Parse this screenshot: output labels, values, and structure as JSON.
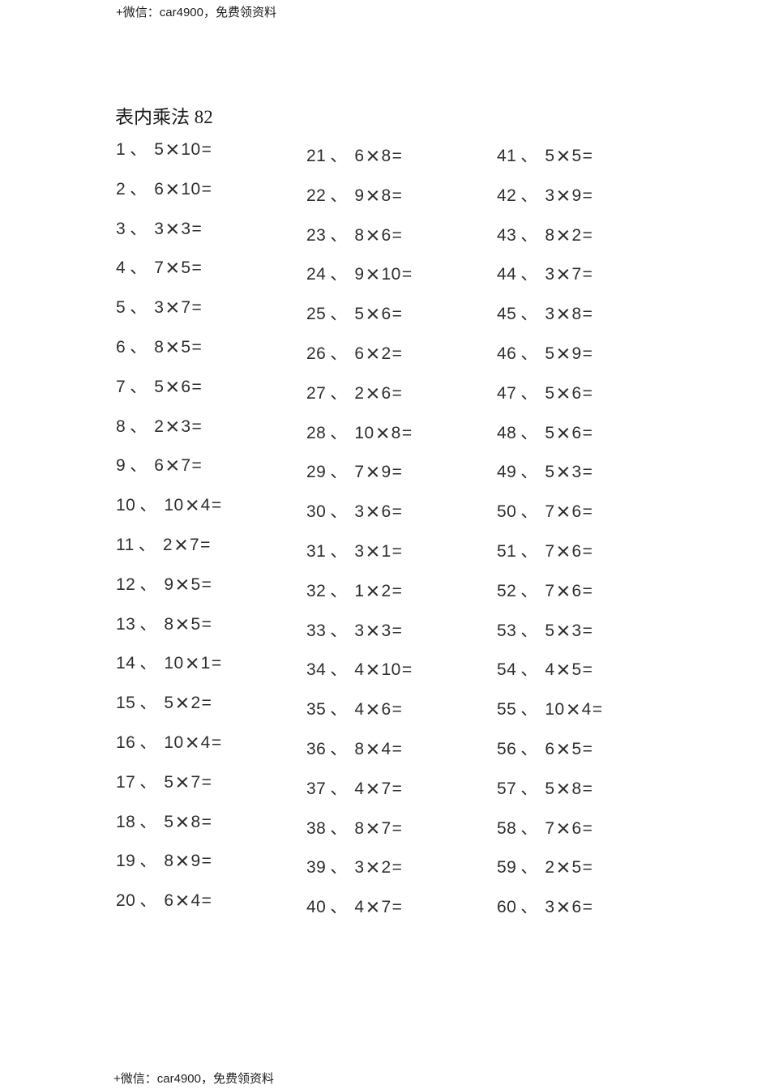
{
  "page": {
    "header_note": "+微信：car4900，免费领资料",
    "footer_note": "+微信：car4900，免费领资料",
    "title": "表内乘法 82"
  },
  "worksheet": {
    "enum_comma": "、",
    "multiply_symbol": "×",
    "equals_symbol": "=",
    "columns_of": 20,
    "problems": [
      {
        "no": "1",
        "a": "5",
        "b": "10"
      },
      {
        "no": "2",
        "a": "6",
        "b": "10"
      },
      {
        "no": "3",
        "a": "3",
        "b": "3"
      },
      {
        "no": "4",
        "a": "7",
        "b": "5"
      },
      {
        "no": "5",
        "a": "3",
        "b": "7"
      },
      {
        "no": "6",
        "a": "8",
        "b": "5"
      },
      {
        "no": "7",
        "a": "5",
        "b": "6"
      },
      {
        "no": "8",
        "a": "2",
        "b": "3"
      },
      {
        "no": "9",
        "a": "6",
        "b": "7"
      },
      {
        "no": "10",
        "a": "10",
        "b": "4"
      },
      {
        "no": "11",
        "a": "2",
        "b": "7"
      },
      {
        "no": "12",
        "a": "9",
        "b": "5"
      },
      {
        "no": "13",
        "a": "8",
        "b": "5"
      },
      {
        "no": "14",
        "a": "10",
        "b": "1"
      },
      {
        "no": "15",
        "a": "5",
        "b": "2"
      },
      {
        "no": "16",
        "a": "10",
        "b": "4"
      },
      {
        "no": "17",
        "a": "5",
        "b": "7"
      },
      {
        "no": "18",
        "a": "5",
        "b": "8"
      },
      {
        "no": "19",
        "a": "8",
        "b": "9"
      },
      {
        "no": "20",
        "a": "6",
        "b": "4"
      },
      {
        "no": "21",
        "a": "6",
        "b": "8"
      },
      {
        "no": "22",
        "a": "9",
        "b": "8"
      },
      {
        "no": "23",
        "a": "8",
        "b": "6"
      },
      {
        "no": "24",
        "a": "9",
        "b": "10"
      },
      {
        "no": "25",
        "a": "5",
        "b": "6"
      },
      {
        "no": "26",
        "a": "6",
        "b": "2"
      },
      {
        "no": "27",
        "a": "2",
        "b": "6"
      },
      {
        "no": "28",
        "a": "10",
        "b": "8"
      },
      {
        "no": "29",
        "a": "7",
        "b": "9"
      },
      {
        "no": "30",
        "a": "3",
        "b": "6"
      },
      {
        "no": "31",
        "a": "3",
        "b": "1"
      },
      {
        "no": "32",
        "a": "1",
        "b": "2"
      },
      {
        "no": "33",
        "a": "3",
        "b": "3"
      },
      {
        "no": "34",
        "a": "4",
        "b": "10"
      },
      {
        "no": "35",
        "a": "4",
        "b": "6"
      },
      {
        "no": "36",
        "a": "8",
        "b": "4"
      },
      {
        "no": "37",
        "a": "4",
        "b": "7"
      },
      {
        "no": "38",
        "a": "8",
        "b": "7"
      },
      {
        "no": "39",
        "a": "3",
        "b": "2"
      },
      {
        "no": "40",
        "a": "4",
        "b": "7"
      },
      {
        "no": "41",
        "a": "5",
        "b": "5"
      },
      {
        "no": "42",
        "a": "3",
        "b": "9"
      },
      {
        "no": "43",
        "a": "8",
        "b": "2"
      },
      {
        "no": "44",
        "a": "3",
        "b": "7"
      },
      {
        "no": "45",
        "a": "3",
        "b": "8"
      },
      {
        "no": "46",
        "a": "5",
        "b": "9"
      },
      {
        "no": "47",
        "a": "5",
        "b": "6"
      },
      {
        "no": "48",
        "a": "5",
        "b": "6"
      },
      {
        "no": "49",
        "a": "5",
        "b": "3"
      },
      {
        "no": "50",
        "a": "7",
        "b": "6"
      },
      {
        "no": "51",
        "a": "7",
        "b": "6"
      },
      {
        "no": "52",
        "a": "7",
        "b": "6"
      },
      {
        "no": "53",
        "a": "5",
        "b": "3"
      },
      {
        "no": "54",
        "a": "4",
        "b": "5"
      },
      {
        "no": "55",
        "a": "10",
        "b": "4"
      },
      {
        "no": "56",
        "a": "6",
        "b": "5"
      },
      {
        "no": "57",
        "a": "5",
        "b": "8"
      },
      {
        "no": "58",
        "a": "7",
        "b": "6"
      },
      {
        "no": "59",
        "a": "2",
        "b": "5"
      },
      {
        "no": "60",
        "a": "3",
        "b": "6"
      }
    ]
  }
}
